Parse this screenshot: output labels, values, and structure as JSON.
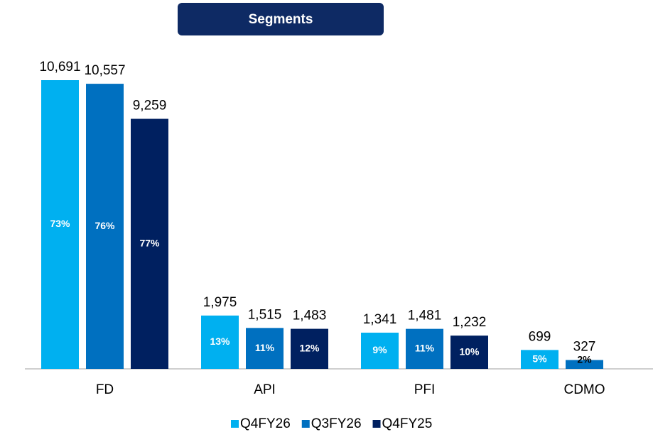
{
  "chart_data": {
    "type": "bar",
    "title": "Segments",
    "categories": [
      "FD",
      "API",
      "PFI",
      "CDMO"
    ],
    "series": [
      {
        "name": "Q4FY26",
        "color": "#00b0f0",
        "values": [
          10691,
          1975,
          1341,
          699
        ],
        "value_labels": [
          "10,691",
          "1,975",
          "1,341",
          "699"
        ],
        "inner_labels": [
          "73%",
          "13%",
          "9%",
          "5%"
        ]
      },
      {
        "name": "Q3FY26",
        "color": "#0070c0",
        "values": [
          10557,
          1515,
          1481,
          327
        ],
        "value_labels": [
          "10,557",
          "1,515",
          "1,481",
          "327"
        ],
        "inner_labels": [
          "76%",
          "11%",
          "11%",
          "2%"
        ]
      },
      {
        "name": "Q4FY25",
        "color": "#002060",
        "values": [
          9259,
          1483,
          1232,
          null
        ],
        "value_labels": [
          "9,259",
          "1,483",
          "1,232",
          null
        ],
        "inner_labels": [
          "77%",
          "12%",
          "10%",
          null
        ]
      }
    ],
    "legend": "bottom"
  }
}
